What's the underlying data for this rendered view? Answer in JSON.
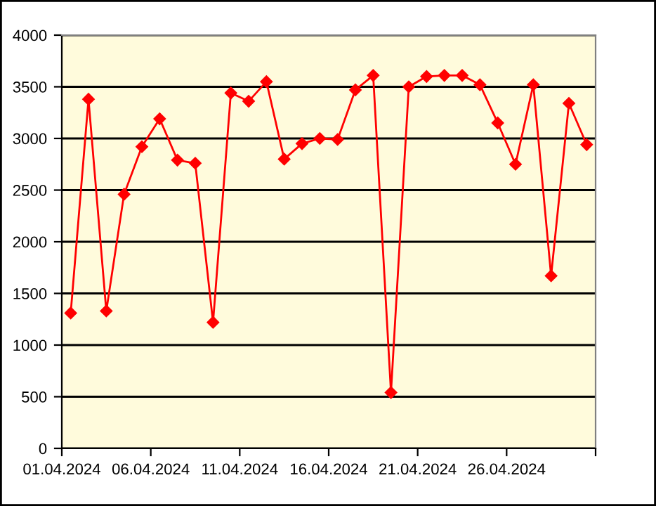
{
  "chart_data": {
    "type": "line",
    "x": [
      "2024-04-01T12:00",
      "2024-04-02T12:00",
      "2024-04-03T12:00",
      "2024-04-04T12:00",
      "2024-04-05T12:00",
      "2024-04-06T12:00",
      "2024-04-07T12:00",
      "2024-04-08T12:00",
      "2024-04-09T12:00",
      "2024-04-10T12:00",
      "2024-04-11T12:00",
      "2024-04-12T12:00",
      "2024-04-13T12:00",
      "2024-04-14T12:00",
      "2024-04-15T12:00",
      "2024-04-16T12:00",
      "2024-04-17T12:00",
      "2024-04-18T12:00",
      "2024-04-19T12:00",
      "2024-04-20T12:00",
      "2024-04-21T12:00",
      "2024-04-22T12:00",
      "2024-04-23T12:00",
      "2024-04-24T12:00",
      "2024-04-25T12:00",
      "2024-04-26T12:00",
      "2024-04-27T12:00",
      "2024-04-28T12:00",
      "2024-04-29T12:00",
      "2024-04-30T12:00"
    ],
    "series": [
      {
        "color": "#ff0000",
        "values": [
          1310,
          3380,
          1330,
          2460,
          2920,
          3190,
          2790,
          2760,
          1220,
          3440,
          3360,
          3550,
          2800,
          2950,
          3000,
          2990,
          3470,
          3610,
          540,
          3500,
          3600,
          3610,
          3610,
          3520,
          3150,
          2750,
          3520,
          1670,
          3340,
          2940
        ]
      }
    ],
    "xlim": [
      "2024-04-01",
      "2024-05-01"
    ],
    "xticks": [
      {
        "value": "2024-04-01",
        "label": "01.04.2024"
      },
      {
        "value": "2024-04-06",
        "label": "06.04.2024"
      },
      {
        "value": "2024-04-11",
        "label": "11.04.2024"
      },
      {
        "value": "2024-04-16",
        "label": "16.04.2024"
      },
      {
        "value": "2024-04-21",
        "label": "21.04.2024"
      },
      {
        "value": "2024-04-26",
        "label": "26.04.2024"
      },
      {
        "value": "2024-05-01",
        "label": null
      }
    ],
    "ylim": [
      0,
      4000
    ],
    "yticks": [
      0,
      500,
      1000,
      1500,
      2000,
      2500,
      3000,
      3500,
      4000
    ],
    "grid": "y",
    "marker": "diamond",
    "line_style": "solid"
  }
}
